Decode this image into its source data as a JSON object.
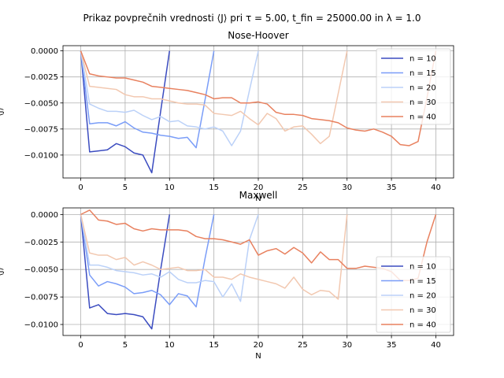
{
  "figure": {
    "suptitle": "Prikaz povprečnih vrednosti ⟨J⟩ pri τ = 5.00, t_fin = 25000.00 in λ = 1.0"
  },
  "chart_data": [
    {
      "type": "line",
      "title": "Nose-Hoover",
      "xlabel": "N",
      "ylabel": "⟨J⟩",
      "xlim": [
        -2,
        42
      ],
      "ylim": [
        -0.0122,
        0.0005
      ],
      "xticks": [
        0,
        5,
        10,
        15,
        20,
        25,
        30,
        35,
        40
      ],
      "yticks": [
        0.0,
        -0.0025,
        -0.005,
        -0.0075,
        -0.01
      ],
      "ytick_labels": [
        "0.0000",
        "−0.0025",
        "−0.0050",
        "−0.0075",
        "−0.0100"
      ],
      "grid": true,
      "legend": "right",
      "series": [
        {
          "name": "n = 10",
          "color": "#3b4cc0",
          "y": [
            0,
            -0.0097,
            -0.0096,
            -0.0095,
            -0.0089,
            -0.0092,
            -0.0098,
            -0.01,
            -0.0117,
            -0.0058,
            0
          ]
        },
        {
          "name": "n = 15",
          "color": "#7a9df8",
          "y": [
            0,
            -0.007,
            -0.0069,
            -0.0069,
            -0.0072,
            -0.0068,
            -0.0074,
            -0.0078,
            -0.0079,
            -0.0081,
            -0.0082,
            -0.0084,
            -0.0083,
            -0.0093,
            -0.0047,
            0
          ]
        },
        {
          "name": "n = 20",
          "color": "#bbd1f8",
          "y": [
            0,
            -0.0051,
            -0.0055,
            -0.0058,
            -0.0058,
            -0.0059,
            -0.0057,
            -0.0062,
            -0.0066,
            -0.0063,
            -0.0068,
            -0.0067,
            -0.0072,
            -0.0073,
            -0.0075,
            -0.0073,
            -0.0077,
            -0.0091,
            -0.0077,
            -0.0038,
            0
          ]
        },
        {
          "name": "n = 30",
          "color": "#f2c8b0",
          "y": [
            0,
            -0.0034,
            -0.0035,
            -0.0036,
            -0.0037,
            -0.0042,
            -0.0044,
            -0.0044,
            -0.0046,
            -0.0046,
            -0.0048,
            -0.005,
            -0.0051,
            -0.0051,
            -0.0052,
            -0.006,
            -0.0061,
            -0.0062,
            -0.0058,
            -0.0065,
            -0.0071,
            -0.006,
            -0.0065,
            -0.0077,
            -0.0073,
            -0.0072,
            -0.008,
            -0.0089,
            -0.0082,
            -0.0041,
            0
          ]
        },
        {
          "name": "n = 40",
          "color": "#e8815f",
          "y": [
            0,
            -0.0022,
            -0.0024,
            -0.0025,
            -0.0026,
            -0.0026,
            -0.0028,
            -0.003,
            -0.0034,
            -0.0035,
            -0.0036,
            -0.0037,
            -0.0038,
            -0.004,
            -0.0042,
            -0.0046,
            -0.0045,
            -0.0045,
            -0.005,
            -0.005,
            -0.0049,
            -0.0051,
            -0.0059,
            -0.0061,
            -0.0061,
            -0.0062,
            -0.0065,
            -0.0066,
            -0.0067,
            -0.0069,
            -0.0074,
            -0.0076,
            -0.0077,
            -0.0075,
            -0.0078,
            -0.0082,
            -0.009,
            -0.0091,
            -0.0087,
            -0.0045,
            0
          ]
        }
      ]
    },
    {
      "type": "line",
      "title": "Maxwell",
      "xlabel": "N",
      "ylabel": "⟨J⟩",
      "xlim": [
        -2,
        42
      ],
      "ylim": [
        -0.011,
        0.0006
      ],
      "xticks": [
        0,
        5,
        10,
        15,
        20,
        25,
        30,
        35,
        40
      ],
      "yticks": [
        0.0,
        -0.0025,
        -0.005,
        -0.0075,
        -0.01
      ],
      "ytick_labels": [
        "0.0000",
        "−0.0025",
        "−0.0050",
        "−0.0075",
        "−0.0100"
      ],
      "grid": true,
      "legend": "lower right",
      "series": [
        {
          "name": "n = 10",
          "color": "#3b4cc0",
          "y": [
            0,
            -0.0085,
            -0.0082,
            -0.009,
            -0.0091,
            -0.009,
            -0.0091,
            -0.0093,
            -0.0104,
            -0.005,
            0
          ]
        },
        {
          "name": "n = 15",
          "color": "#7a9df8",
          "y": [
            0,
            -0.0055,
            -0.0065,
            -0.0061,
            -0.0063,
            -0.0066,
            -0.0072,
            -0.0071,
            -0.0069,
            -0.0073,
            -0.0082,
            -0.0072,
            -0.0074,
            -0.0084,
            -0.004,
            0
          ]
        },
        {
          "name": "n = 20",
          "color": "#bbd1f8",
          "y": [
            0,
            -0.0046,
            -0.0046,
            -0.0048,
            -0.0051,
            -0.0052,
            -0.0053,
            -0.0055,
            -0.0054,
            -0.0057,
            -0.0052,
            -0.0059,
            -0.0062,
            -0.0062,
            -0.006,
            -0.0061,
            -0.0075,
            -0.0063,
            -0.0079,
            -0.0023,
            0
          ]
        },
        {
          "name": "n = 30",
          "color": "#f2c8b0",
          "y": [
            0,
            -0.0035,
            -0.0037,
            -0.0037,
            -0.0041,
            -0.0039,
            -0.0046,
            -0.0043,
            -0.0046,
            -0.005,
            -0.0049,
            -0.0048,
            -0.0051,
            -0.0051,
            -0.005,
            -0.0057,
            -0.0057,
            -0.0059,
            -0.0054,
            -0.0057,
            -0.0059,
            -0.0061,
            -0.0063,
            -0.0067,
            -0.0057,
            -0.0068,
            -0.0073,
            -0.0069,
            -0.007,
            -0.0077,
            0
          ]
        },
        {
          "name": "n = 40",
          "color": "#e8815f",
          "y": [
            0,
            0.0004,
            -0.0005,
            -0.0006,
            -0.0009,
            -0.0008,
            -0.0013,
            -0.0015,
            -0.0013,
            -0.0014,
            -0.0014,
            -0.0014,
            -0.0015,
            -0.002,
            -0.0022,
            -0.0022,
            -0.0023,
            -0.0025,
            -0.0027,
            -0.0023,
            -0.0037,
            -0.0033,
            -0.0031,
            -0.0036,
            -0.003,
            -0.0035,
            -0.0044,
            -0.0034,
            -0.0041,
            -0.0041,
            -0.0049,
            -0.0049,
            -0.0047,
            -0.0048,
            -0.0049,
            -0.0052,
            -0.006,
            -0.006,
            -0.0058,
            -0.0025,
            0
          ]
        }
      ]
    }
  ]
}
